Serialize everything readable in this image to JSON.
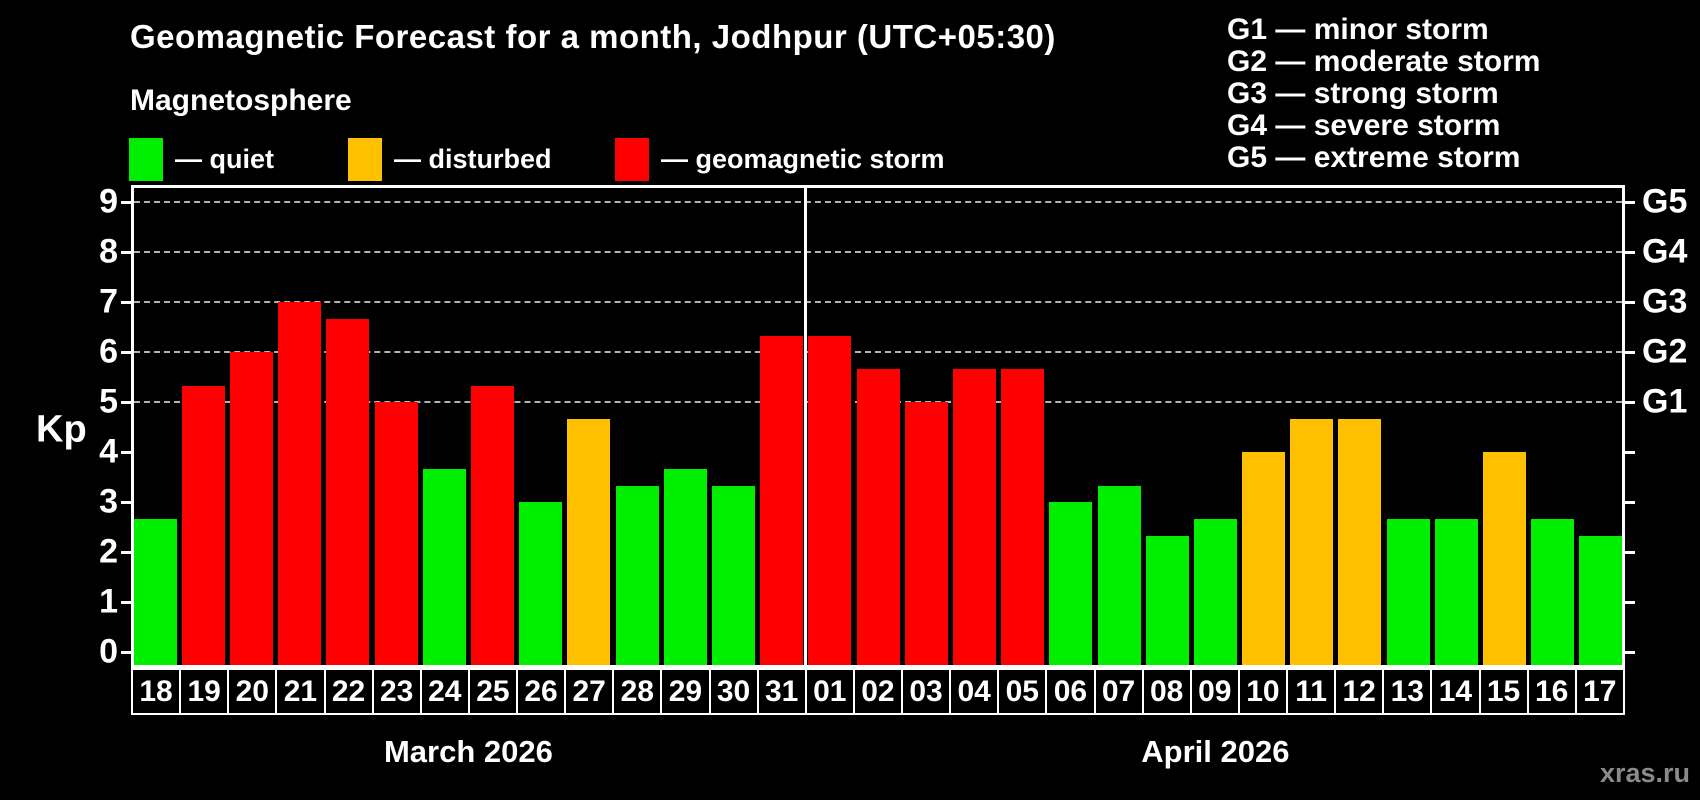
{
  "title": "Geomagnetic Forecast for a month, Jodhpur (UTC+05:30)",
  "subtitle": "Magnetosphere",
  "legend": {
    "items": [
      {
        "status": "quiet",
        "label": "— quiet"
      },
      {
        "status": "disturbed",
        "label": "— disturbed"
      },
      {
        "status": "storm",
        "label": "— geomagnetic storm"
      }
    ]
  },
  "g_scale_legend": [
    "G1 — minor storm",
    "G2 — moderate storm",
    "G3 — strong storm",
    "G4 — severe storm",
    "G5 — extreme storm"
  ],
  "watermark": "xras.ru",
  "chart_data": {
    "type": "bar",
    "title": "Geomagnetic Forecast for a month, Jodhpur (UTC+05:30)",
    "ylabel": "Kp",
    "ylim": [
      -0.35,
      9.35
    ],
    "yticks": [
      0,
      1,
      2,
      3,
      4,
      5,
      6,
      7,
      8,
      9
    ],
    "grid_kp": [
      5,
      6,
      7,
      8,
      9
    ],
    "grid_on": true,
    "legend_position": "top",
    "right_axis_labels": [
      {
        "kp": 5,
        "label": "G1"
      },
      {
        "kp": 6,
        "label": "G2"
      },
      {
        "kp": 7,
        "label": "G3"
      },
      {
        "kp": 8,
        "label": "G4"
      },
      {
        "kp": 9,
        "label": "G5"
      }
    ],
    "status_colors": {
      "quiet": "#00ee00",
      "disturbed": "#ffc000",
      "storm": "#ff0000"
    },
    "sections": [
      {
        "label": "March 2026",
        "count": 14
      },
      {
        "label": "April 2026",
        "count": 17
      }
    ],
    "bars": [
      {
        "day": "18",
        "month": "March 2026",
        "kp": 2.67,
        "status": "quiet"
      },
      {
        "day": "19",
        "month": "March 2026",
        "kp": 5.33,
        "status": "storm"
      },
      {
        "day": "20",
        "month": "March 2026",
        "kp": 6.0,
        "status": "storm"
      },
      {
        "day": "21",
        "month": "March 2026",
        "kp": 7.0,
        "status": "storm"
      },
      {
        "day": "22",
        "month": "March 2026",
        "kp": 6.67,
        "status": "storm"
      },
      {
        "day": "23",
        "month": "March 2026",
        "kp": 5.0,
        "status": "storm"
      },
      {
        "day": "24",
        "month": "March 2026",
        "kp": 3.67,
        "status": "quiet"
      },
      {
        "day": "25",
        "month": "March 2026",
        "kp": 5.33,
        "status": "storm"
      },
      {
        "day": "26",
        "month": "March 2026",
        "kp": 3.0,
        "status": "quiet"
      },
      {
        "day": "27",
        "month": "March 2026",
        "kp": 4.67,
        "status": "disturbed"
      },
      {
        "day": "28",
        "month": "March 2026",
        "kp": 3.33,
        "status": "quiet"
      },
      {
        "day": "29",
        "month": "March 2026",
        "kp": 3.67,
        "status": "quiet"
      },
      {
        "day": "30",
        "month": "March 2026",
        "kp": 3.33,
        "status": "quiet"
      },
      {
        "day": "31",
        "month": "March 2026",
        "kp": 6.33,
        "status": "storm"
      },
      {
        "day": "01",
        "month": "April 2026",
        "kp": 6.33,
        "status": "storm"
      },
      {
        "day": "02",
        "month": "April 2026",
        "kp": 5.67,
        "status": "storm"
      },
      {
        "day": "03",
        "month": "April 2026",
        "kp": 5.0,
        "status": "storm"
      },
      {
        "day": "04",
        "month": "April 2026",
        "kp": 5.67,
        "status": "storm"
      },
      {
        "day": "05",
        "month": "April 2026",
        "kp": 5.67,
        "status": "storm"
      },
      {
        "day": "06",
        "month": "April 2026",
        "kp": 3.0,
        "status": "quiet"
      },
      {
        "day": "07",
        "month": "April 2026",
        "kp": 3.33,
        "status": "quiet"
      },
      {
        "day": "08",
        "month": "April 2026",
        "kp": 2.33,
        "status": "quiet"
      },
      {
        "day": "09",
        "month": "April 2026",
        "kp": 2.67,
        "status": "quiet"
      },
      {
        "day": "10",
        "month": "April 2026",
        "kp": 4.0,
        "status": "disturbed"
      },
      {
        "day": "11",
        "month": "April 2026",
        "kp": 4.67,
        "status": "disturbed"
      },
      {
        "day": "12",
        "month": "April 2026",
        "kp": 4.67,
        "status": "disturbed"
      },
      {
        "day": "13",
        "month": "April 2026",
        "kp": 2.67,
        "status": "quiet"
      },
      {
        "day": "14",
        "month": "April 2026",
        "kp": 2.67,
        "status": "quiet"
      },
      {
        "day": "15",
        "month": "April 2026",
        "kp": 4.0,
        "status": "disturbed"
      },
      {
        "day": "16",
        "month": "April 2026",
        "kp": 2.67,
        "status": "quiet"
      },
      {
        "day": "17",
        "month": "April 2026",
        "kp": 2.33,
        "status": "quiet"
      }
    ]
  }
}
